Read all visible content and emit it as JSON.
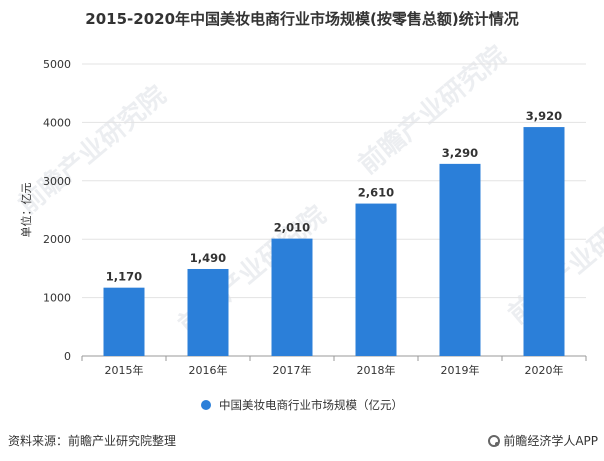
{
  "title": "2015-2020年中国美妆电商行业市场规模(按零售总额)统计情况",
  "source": "资料来源：前瞻产业研究院整理",
  "brand": "前瞻经济学人APP",
  "watermark": "前瞻产业研究院",
  "colors": {
    "bar": "#2b7fd9",
    "grid": "#e3e3e3",
    "axis": "#999999",
    "text": "#333333"
  },
  "chart_data": {
    "type": "bar",
    "title": "2015-2020年中国美妆电商行业市场规模(按零售总额)统计情况",
    "ylabel": "单位：亿元",
    "categories": [
      "2015年",
      "2016年",
      "2017年",
      "2018年",
      "2019年",
      "2020年"
    ],
    "series": [
      {
        "name": "中国美妆电商行业市场规模（亿元）",
        "values": [
          1170,
          1490,
          2010,
          2610,
          3290,
          3920
        ]
      }
    ],
    "data_labels": [
      "1,170",
      "1,490",
      "2,010",
      "2,610",
      "3,290",
      "3,920"
    ],
    "yticks": [
      "0",
      "1000",
      "2000",
      "3000",
      "4000",
      "5000"
    ],
    "ylim": [
      0,
      5000
    ],
    "grid": true,
    "legend_position": "bottom"
  }
}
